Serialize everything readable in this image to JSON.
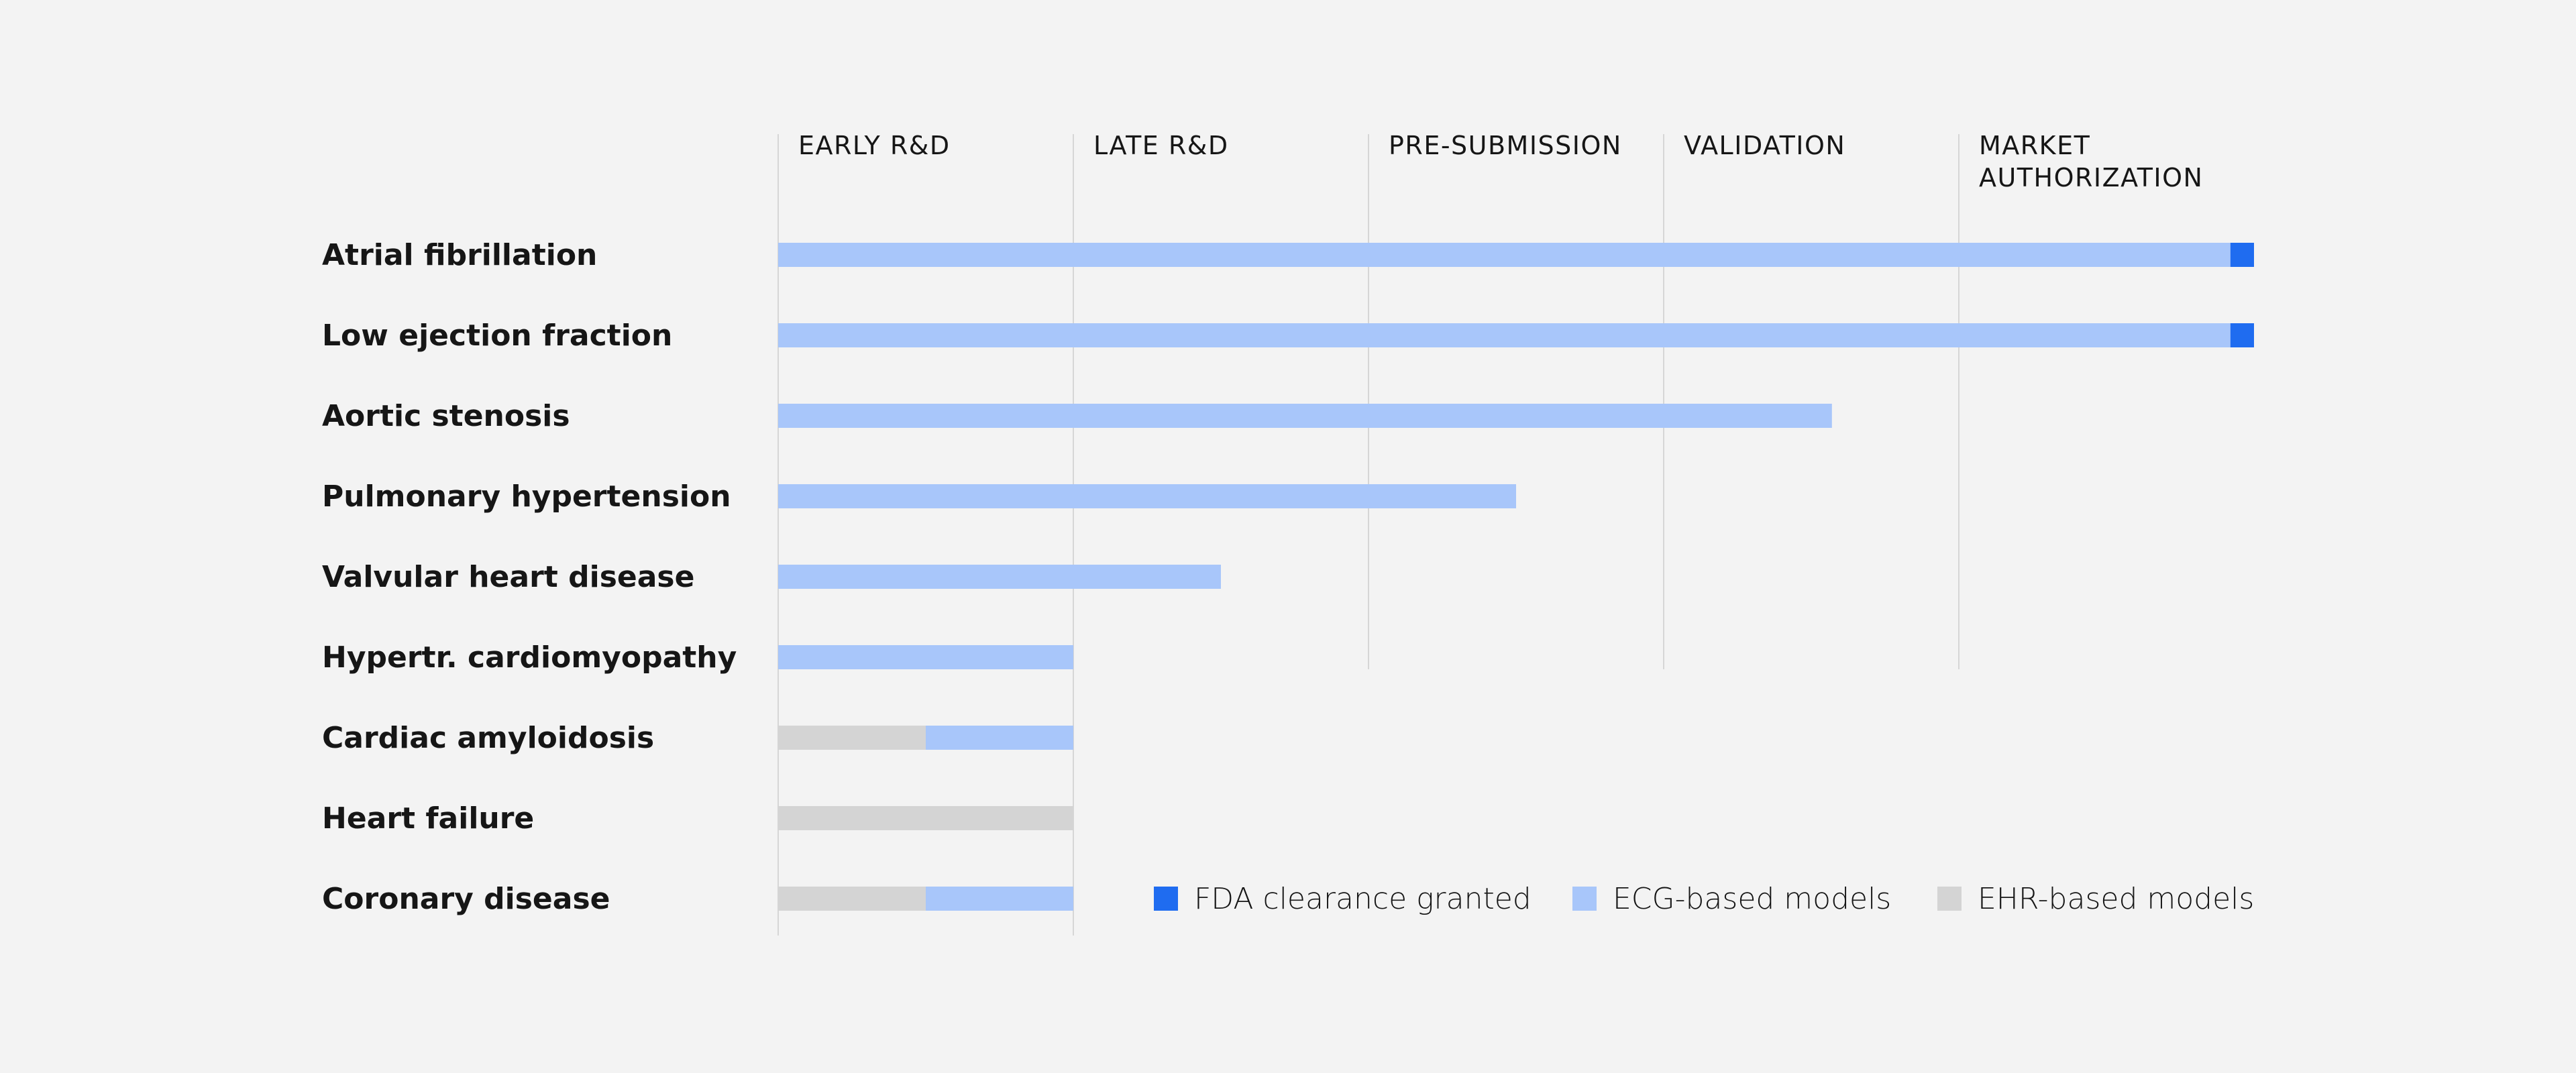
{
  "chart_data": {
    "type": "bar",
    "orientation": "horizontal",
    "stacked": true,
    "title": "",
    "stages": [
      "EARLY R&D",
      "LATE R&D",
      "PRE-SUBMISSION",
      "VALIDATION",
      "MARKET AUTHORIZATION"
    ],
    "categories": [
      "Atrial fibrillation",
      "Low ejection fraction",
      "Aortic stenosis",
      "Pulmonary hypertension",
      "Valvular heart disease",
      "Hypertr. cardiomyopathy",
      "Cardiac amyloidosis",
      "Heart failure",
      "Coronary disease"
    ],
    "xlim": [
      0,
      5
    ],
    "series": [
      {
        "name": "EHR-based models",
        "color": "#d4d4d4",
        "values": [
          0,
          0,
          0,
          0,
          0,
          0,
          0.5,
          1.0,
          0.5
        ]
      },
      {
        "name": "ECG-based models",
        "color": "#a8c6fa",
        "values": [
          4.92,
          4.92,
          3.57,
          2.5,
          1.5,
          1.0,
          0.5,
          0,
          0.5
        ]
      },
      {
        "name": "FDA clearance granted",
        "color": "#1f6cf0",
        "values": [
          0.08,
          0.08,
          0,
          0,
          0,
          0,
          0,
          0,
          0
        ]
      }
    ],
    "legend_order": [
      "FDA clearance granted",
      "ECG-based models",
      "EHR-based models"
    ],
    "legend_position": "bottom-right",
    "grid": true
  }
}
